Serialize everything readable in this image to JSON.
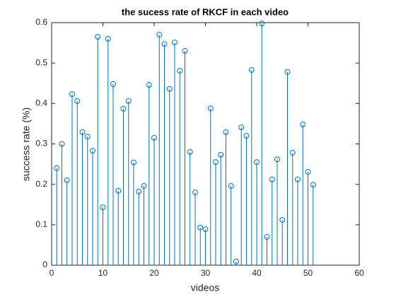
{
  "chart_data": {
    "type": "stem",
    "title": "the sucess rate of RKCF in each video",
    "x_label": "videos",
    "y_label": "success rate (%)",
    "color": "#0072bd",
    "x": [
      1,
      2,
      3,
      4,
      5,
      6,
      7,
      8,
      9,
      10,
      11,
      12,
      13,
      14,
      15,
      16,
      17,
      18,
      19,
      20,
      21,
      22,
      23,
      24,
      25,
      26,
      27,
      28,
      29,
      30,
      31,
      32,
      33,
      34,
      35,
      36,
      37,
      38,
      39,
      40,
      41,
      42,
      43,
      44,
      45,
      46,
      47,
      48,
      49,
      50,
      51
    ],
    "values": [
      0.24,
      0.3,
      0.21,
      0.423,
      0.406,
      0.329,
      0.318,
      0.283,
      0.565,
      0.143,
      0.56,
      0.448,
      0.184,
      0.387,
      0.406,
      0.254,
      0.182,
      0.196,
      0.446,
      0.315,
      0.57,
      0.547,
      0.436,
      0.551,
      0.481,
      0.53,
      0.28,
      0.18,
      0.093,
      0.089,
      0.388,
      0.255,
      0.273,
      0.329,
      0.196,
      0.009,
      0.341,
      0.32,
      0.483,
      0.255,
      0.598,
      0.07,
      0.212,
      0.262,
      0.112,
      0.478,
      0.278,
      0.212,
      0.348,
      0.231,
      0.199
    ],
    "xlim": [
      0,
      60
    ],
    "xticks": [
      0,
      10,
      20,
      30,
      40,
      50,
      60
    ],
    "ylim": [
      0,
      0.6
    ],
    "yticks": [
      0,
      0.1,
      0.2,
      0.3,
      0.4,
      0.5,
      0.6
    ],
    "grid": false
  }
}
